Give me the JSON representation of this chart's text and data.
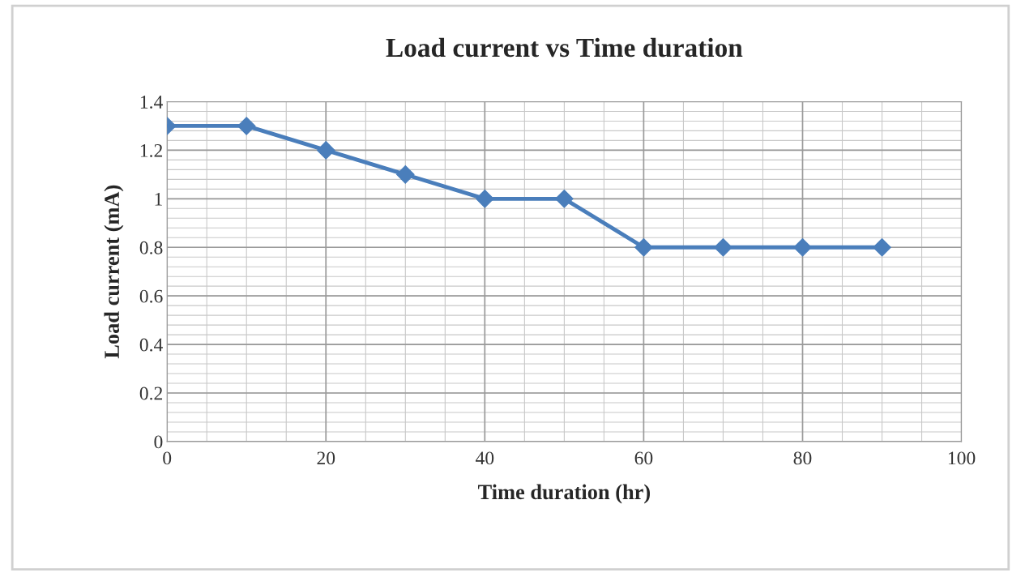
{
  "chart_data": {
    "type": "line",
    "title": "Load current vs Time duration",
    "xlabel": "Time duration (hr)",
    "ylabel": "Load current (mA)",
    "x": [
      0,
      10,
      20,
      30,
      40,
      50,
      60,
      70,
      80,
      90
    ],
    "series": [
      {
        "color": "#4a7ebb",
        "values": [
          1.3,
          1.3,
          1.2,
          1.1,
          1.0,
          1.0,
          0.8,
          0.8,
          0.8,
          0.8
        ]
      }
    ],
    "xlim": [
      0,
      100
    ],
    "xticks": [
      0,
      20,
      40,
      60,
      80,
      100
    ],
    "ylim": [
      0,
      1.4
    ],
    "yticks": [
      0,
      {
        "value": 0.2,
        "label": "0.2"
      },
      {
        "value": 0.4,
        "label": "0.4"
      },
      {
        "value": 0.6,
        "label": "0.6"
      },
      {
        "value": 0.8,
        "label": "0.8"
      },
      1,
      {
        "value": 1.2,
        "label": "1.2"
      },
      {
        "value": 1.4,
        "label": "1.4"
      }
    ],
    "grid": true,
    "marker": "diamond",
    "line_style": "solid",
    "legend": false
  }
}
